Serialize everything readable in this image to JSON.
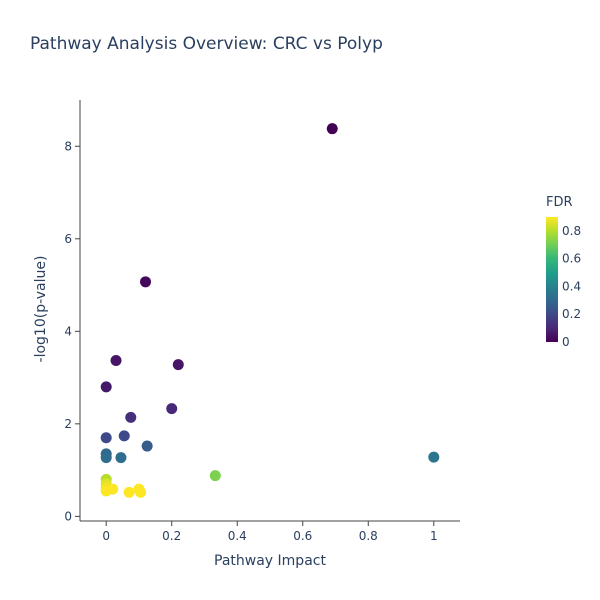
{
  "chart_data": {
    "type": "scatter",
    "title": "Pathway Analysis Overview: CRC vs Polyp",
    "xlabel": "Pathway Impact",
    "ylabel": "-log10(p-value)",
    "xlim": [
      -0.08,
      1.08
    ],
    "ylim": [
      -0.1,
      9.0
    ],
    "x_ticks": [
      0,
      0.2,
      0.4,
      0.6,
      0.8,
      1
    ],
    "x_tick_labels": [
      "0",
      "0.2",
      "0.4",
      "0.6",
      "0.8",
      "1"
    ],
    "y_ticks": [
      0,
      2,
      4,
      6,
      8
    ],
    "y_tick_labels": [
      "0",
      "2",
      "4",
      "6",
      "8"
    ],
    "grid": false,
    "colorbar": {
      "title": "FDR",
      "colorscale": "Viridis",
      "range": [
        0,
        0.9
      ],
      "ticks": [
        0,
        0.2,
        0.4,
        0.6,
        0.8
      ],
      "tick_labels": [
        "0",
        "0.2",
        "0.4",
        "0.6",
        "0.8"
      ],
      "stops": [
        "#440154",
        "#482878",
        "#3e4989",
        "#31688e",
        "#26828e",
        "#1f9e89",
        "#35b779",
        "#6ece58",
        "#b5de2b",
        "#fde725"
      ]
    },
    "points": [
      {
        "x": 0.69,
        "y": 8.38,
        "fdr": 0.0
      },
      {
        "x": 0.12,
        "y": 5.07,
        "fdr": 0.02
      },
      {
        "x": 0.03,
        "y": 3.37,
        "fdr": 0.05
      },
      {
        "x": 0.22,
        "y": 3.28,
        "fdr": 0.05
      },
      {
        "x": 0.0,
        "y": 2.8,
        "fdr": 0.06
      },
      {
        "x": 0.2,
        "y": 2.33,
        "fdr": 0.1
      },
      {
        "x": 0.075,
        "y": 2.14,
        "fdr": 0.12
      },
      {
        "x": 0.055,
        "y": 1.74,
        "fdr": 0.2
      },
      {
        "x": 0.0,
        "y": 1.7,
        "fdr": 0.2
      },
      {
        "x": 0.125,
        "y": 1.52,
        "fdr": 0.26
      },
      {
        "x": 0.0,
        "y": 1.35,
        "fdr": 0.3
      },
      {
        "x": 0.0,
        "y": 1.27,
        "fdr": 0.32
      },
      {
        "x": 0.045,
        "y": 1.27,
        "fdr": 0.32
      },
      {
        "x": 1.0,
        "y": 1.28,
        "fdr": 0.35
      },
      {
        "x": 0.333,
        "y": 0.88,
        "fdr": 0.72
      },
      {
        "x": 0.0,
        "y": 0.8,
        "fdr": 0.8
      },
      {
        "x": 0.0,
        "y": 0.7,
        "fdr": 0.86
      },
      {
        "x": 0.0,
        "y": 0.62,
        "fdr": 0.88
      },
      {
        "x": 0.02,
        "y": 0.59,
        "fdr": 0.9
      },
      {
        "x": 0.0,
        "y": 0.55,
        "fdr": 0.9
      },
      {
        "x": 0.1,
        "y": 0.59,
        "fdr": 0.9
      },
      {
        "x": 0.07,
        "y": 0.52,
        "fdr": 0.9
      },
      {
        "x": 0.105,
        "y": 0.52,
        "fdr": 0.9
      }
    ]
  }
}
